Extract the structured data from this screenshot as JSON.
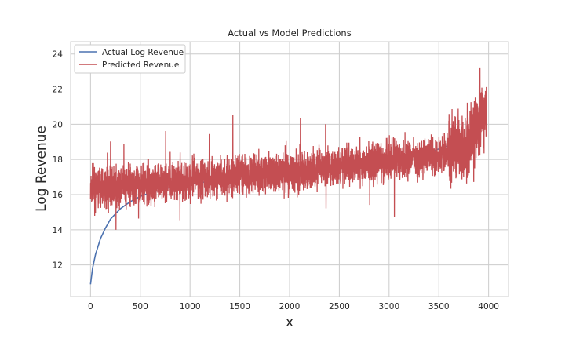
{
  "chart_data": {
    "type": "line",
    "title": "Actual vs Model Predictions",
    "xlabel": "x",
    "ylabel": "Log Revenue",
    "xlim": [
      -200,
      4200
    ],
    "ylim": [
      10.2,
      24.7
    ],
    "xticks": [
      0,
      500,
      1000,
      1500,
      2000,
      2500,
      3000,
      3500,
      4000
    ],
    "yticks": [
      12,
      14,
      16,
      18,
      20,
      22,
      24
    ],
    "grid": true,
    "legend_position": "top-left",
    "series": [
      {
        "name": "Actual Log Revenue",
        "color": "#4c72b0",
        "x": [
          0,
          20,
          50,
          100,
          150,
          200,
          300,
          400,
          500,
          600,
          800,
          1000,
          1500,
          2000,
          2500,
          2800,
          3000,
          3200,
          3400,
          3500,
          3600,
          3700,
          3800,
          3900,
          3950,
          3980
        ],
        "y": [
          10.9,
          11.8,
          12.6,
          13.5,
          14.1,
          14.6,
          15.2,
          15.6,
          15.9,
          16.1,
          16.4,
          16.6,
          17.0,
          17.3,
          17.6,
          17.8,
          18.0,
          18.2,
          18.4,
          18.6,
          18.8,
          19.0,
          19.3,
          19.8,
          20.4,
          21.0
        ]
      },
      {
        "name": "Predicted Revenue",
        "color": "#c44e52",
        "x": [
          0,
          500,
          1000,
          1500,
          2000,
          2500,
          3000,
          3500,
          3700,
          3800,
          3900,
          3980
        ],
        "y": [
          16.3,
          16.6,
          16.8,
          17.1,
          17.3,
          17.6,
          17.9,
          18.3,
          18.6,
          19.0,
          19.8,
          21.0
        ],
        "noise_spread": 0.55,
        "points": 4000
      }
    ]
  }
}
